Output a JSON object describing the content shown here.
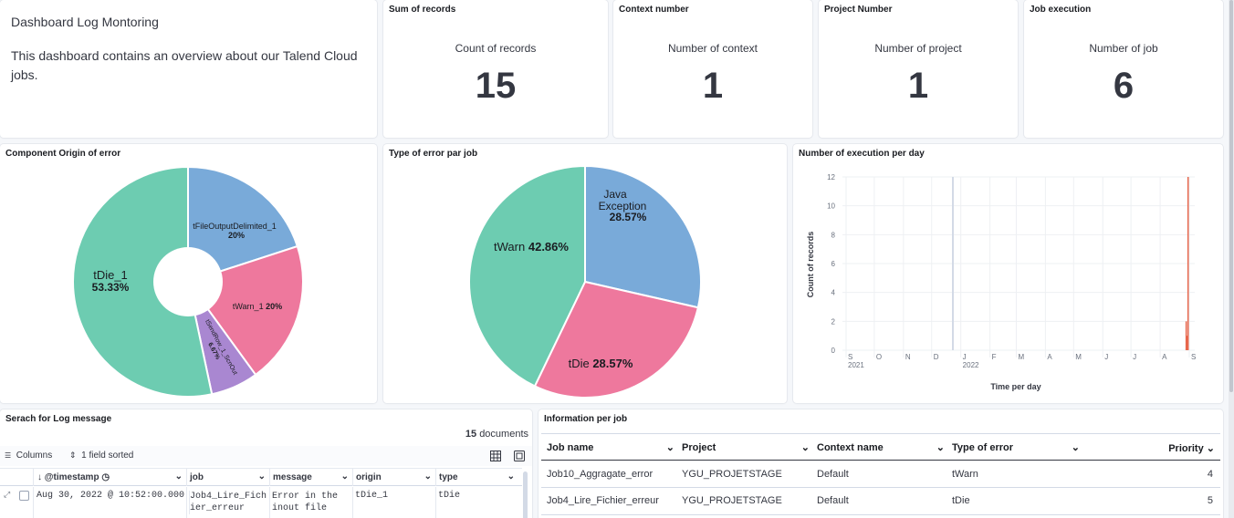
{
  "description": {
    "title": "Dashboard Log Montoring",
    "text": "This dashboard contains an overview about our Talend Cloud jobs."
  },
  "metrics": [
    {
      "title": "Sum of records",
      "label": "Count of records",
      "value": "15"
    },
    {
      "title": "Context number",
      "label": "Number of context",
      "value": "1"
    },
    {
      "title": "Project Number",
      "label": "Number of project",
      "value": "1"
    },
    {
      "title": "Job execution",
      "label": "Number of job",
      "value": "6"
    }
  ],
  "colors": {
    "green": "#6dccb1",
    "blue": "#79aad9",
    "pink": "#ee789d",
    "purple": "#a987d1",
    "red": "#e7664c"
  },
  "chart_data": [
    {
      "type": "pie",
      "title": "Component Origin of error",
      "donut": true,
      "slices": [
        {
          "name": "tFileOutputDelimited_1",
          "pct": "20%",
          "value": 20
        },
        {
          "name": "tWarn_1",
          "pct": "20%",
          "value": 20
        },
        {
          "name": "tSendRow_1_ScnOut",
          "pct": "6.67%",
          "value": 6.67
        },
        {
          "name": "tDie_1",
          "pct": "53.33%",
          "value": 53.33
        }
      ]
    },
    {
      "type": "pie",
      "title": "Type of error par job",
      "donut": false,
      "slices": [
        {
          "name": "Java Exception",
          "name_line1": "Java",
          "name_line2": "Exception",
          "pct": "28.57%",
          "value": 28.57
        },
        {
          "name": "tDie",
          "pct": "28.57%",
          "value": 28.57
        },
        {
          "name": "tWarn",
          "pct": "42.86%",
          "value": 42.86
        }
      ]
    },
    {
      "type": "bar",
      "title": "Number of execution per day",
      "xlabel": "Time per day",
      "ylabel": "Count of records",
      "ylim": [
        0,
        12
      ],
      "yticks": [
        "0",
        "2",
        "4",
        "6",
        "8",
        "10",
        "12"
      ],
      "xticks": [
        "S",
        "O",
        "N",
        "D",
        "J",
        "F",
        "M",
        "A",
        "M",
        "J",
        "J",
        "A",
        "S"
      ],
      "xyears": [
        "2021",
        "2022"
      ],
      "bars": [
        {
          "date": "2022-08-28",
          "value": 2
        },
        {
          "date": "2022-08-29",
          "value": 1
        },
        {
          "date": "2022-08-30",
          "value": 12
        }
      ]
    }
  ],
  "logsearch": {
    "title": "Serach for Log message",
    "doc_count": "15",
    "doc_label": "documents",
    "columns_label": "Columns",
    "sort_label": "1 field sorted",
    "headers": [
      "@timestamp",
      "job",
      "message",
      "origin",
      "type"
    ],
    "row": {
      "timestamp": "Aug 30, 2022 @ 10:52:00.000",
      "job1": "Job4_Lire_Fich",
      "job2": "ier_erreur",
      "msg1": "Error in the",
      "msg2": "inout file",
      "origin": "tDie_1",
      "type": "tDie"
    }
  },
  "jobinfo": {
    "title": "Information per job",
    "headers": [
      "Job name",
      "Project",
      "Context name",
      "Type of error",
      "Priority"
    ],
    "rows": [
      [
        "Job10_Aggragate_error",
        "YGU_PROJETSTAGE",
        "Default",
        "tWarn",
        "4"
      ],
      [
        "Job4_Lire_Fichier_erreur",
        "YGU_PROJETSTAGE",
        "Default",
        "tDie",
        "5"
      ]
    ]
  }
}
